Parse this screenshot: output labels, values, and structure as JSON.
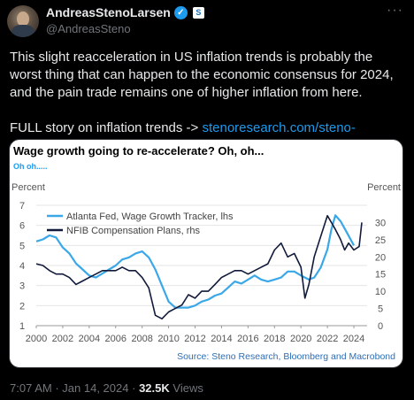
{
  "header": {
    "display_name": "AndreasStenoLarsen",
    "handle": "@AndreasSteno",
    "more_label": "···"
  },
  "tweet": {
    "text": "This slight reacceleration in US inflation trends is probably the worst thing that can happen to the economic consensus for 2024, and the pain trade remains one of higher inflation from here.",
    "link_prefix": "FULL story on inflation trends -> ",
    "link_text": "stenoresearch.com/steno-signals-..."
  },
  "meta": {
    "time": "7:07 AM",
    "date": "Jan 14, 2024",
    "separator": "·",
    "views_count": "32.5K",
    "views_label": "Views"
  },
  "colors": {
    "accent": "#1d9bf0",
    "atlanta_series": "#3aa8e8",
    "nfib_series": "#111a3a"
  },
  "chart_data": {
    "type": "line",
    "title": "Wage growth going to re-accelerate? Oh, oh...",
    "subtitle": "Oh oh.....",
    "left_axis_title": "Percent",
    "right_axis_title": "Percent",
    "source": "Source: Steno Research, Bloomberg and Macrobond",
    "xlim": [
      2000,
      2025
    ],
    "x_ticks": [
      "2000",
      "2002",
      "2004",
      "2006",
      "2008",
      "2010",
      "2012",
      "2014",
      "2016",
      "2018",
      "2020",
      "2022",
      "2024"
    ],
    "ylim_left": [
      1,
      7
    ],
    "y_ticks_left": [
      "1",
      "2",
      "3",
      "4",
      "5",
      "6",
      "7"
    ],
    "ylim_right": [
      0,
      35
    ],
    "y_ticks_right": [
      "0",
      "5",
      "10",
      "15",
      "20",
      "25",
      "30"
    ],
    "legend_position": "top-left",
    "series": [
      {
        "name": "Atlanta Fed, Wage Growth Tracker, lhs",
        "axis": "left",
        "x": [
          2000,
          2000.5,
          2001,
          2001.5,
          2002,
          2002.5,
          2003,
          2003.5,
          2004,
          2004.5,
          2005,
          2005.5,
          2006,
          2006.5,
          2007,
          2007.5,
          2008,
          2008.5,
          2009,
          2009.5,
          2010,
          2010.5,
          2011,
          2011.5,
          2012,
          2012.5,
          2013,
          2013.5,
          2014,
          2014.5,
          2015,
          2015.5,
          2016,
          2016.5,
          2017,
          2017.5,
          2018,
          2018.5,
          2019,
          2019.5,
          2020,
          2020.3,
          2020.6,
          2021,
          2021.5,
          2022,
          2022.3,
          2022.6,
          2023,
          2023.5,
          2024
        ],
        "y": [
          5.2,
          5.3,
          5.5,
          5.4,
          4.9,
          4.6,
          4.1,
          3.8,
          3.5,
          3.4,
          3.6,
          3.8,
          4.0,
          4.3,
          4.4,
          4.6,
          4.7,
          4.4,
          3.8,
          3.0,
          2.2,
          1.9,
          1.9,
          1.9,
          2.0,
          2.2,
          2.3,
          2.5,
          2.6,
          2.9,
          3.2,
          3.1,
          3.3,
          3.5,
          3.3,
          3.2,
          3.3,
          3.4,
          3.7,
          3.7,
          3.5,
          3.4,
          3.3,
          3.4,
          3.9,
          4.8,
          5.8,
          6.5,
          6.2,
          5.6,
          5.0
        ]
      },
      {
        "name": "NFIB Compensation Plans, rhs",
        "axis": "right",
        "x": [
          2000,
          2000.5,
          2001,
          2001.5,
          2002,
          2002.5,
          2003,
          2003.5,
          2004,
          2004.5,
          2005,
          2005.5,
          2006,
          2006.5,
          2007,
          2007.5,
          2008,
          2008.5,
          2009,
          2009.5,
          2010,
          2010.5,
          2011,
          2011.5,
          2012,
          2012.5,
          2013,
          2013.5,
          2014,
          2014.5,
          2015,
          2015.5,
          2016,
          2016.5,
          2017,
          2017.5,
          2018,
          2018.5,
          2019,
          2019.5,
          2020,
          2020.3,
          2020.6,
          2021,
          2021.5,
          2022,
          2022.3,
          2022.6,
          2023,
          2023.3,
          2023.6,
          2024,
          2024.4,
          2024.6
        ],
        "y": [
          18,
          17.5,
          16,
          15,
          15,
          14,
          12,
          13,
          14,
          15,
          16,
          16,
          16,
          17,
          16,
          16,
          14,
          11,
          3,
          2,
          4,
          5,
          6,
          9,
          8,
          10,
          10,
          12,
          14,
          15,
          16,
          16,
          15,
          16,
          17,
          18,
          22,
          24,
          20,
          21,
          17,
          8,
          12,
          20,
          26,
          32,
          30,
          28,
          25,
          22,
          24,
          22,
          23,
          30
        ]
      }
    ]
  }
}
